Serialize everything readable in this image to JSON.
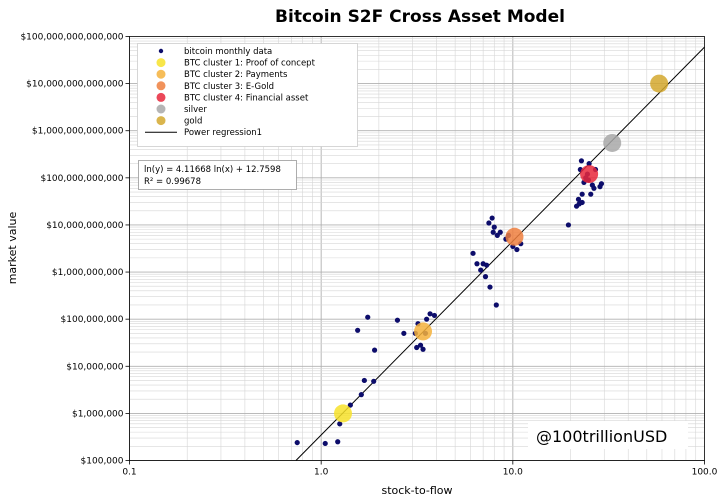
{
  "chart_data": {
    "type": "scatter",
    "title": "Bitcoin S2F Cross Asset Model",
    "xlabel": "stock-to-flow",
    "ylabel": "market value",
    "xscale": "log",
    "yscale": "log",
    "xlim": [
      0.1,
      100
    ],
    "ylim": [
      100000,
      100000000000000
    ],
    "grid": true,
    "x_tick_labels": [
      "0.1",
      "1.0",
      "10.0",
      "100.0"
    ],
    "y_tick_labels": [
      "$100,000",
      "$1,000,000",
      "$10,000,000",
      "$100,000,000",
      "$1,000,000,000",
      "$10,000,000,000",
      "$100,000,000,000",
      "$1,000,000,000,000",
      "$10,000,000,000,000",
      "$100,000,000,000,000"
    ],
    "legend_position": "top-left",
    "legend": [
      {
        "label": "bitcoin monthly data",
        "kind": "dot",
        "color": "#0d0d6b"
      },
      {
        "label": "BTC cluster 1: Proof of concept",
        "kind": "circle",
        "color": "#f7e22a"
      },
      {
        "label": "BTC cluster 2: Payments",
        "kind": "circle",
        "color": "#f5b13c"
      },
      {
        "label": "BTC cluster 3: E-Gold",
        "kind": "circle",
        "color": "#ef7f3e"
      },
      {
        "label": "BTC cluster 4: Financial asset",
        "kind": "circle",
        "color": "#e8283c"
      },
      {
        "label": "silver",
        "kind": "circle",
        "color": "#a8a8a8"
      },
      {
        "label": "gold",
        "kind": "circle",
        "color": "#d4a82e"
      },
      {
        "label": "Power regression1",
        "kind": "line",
        "color": "#000000"
      }
    ],
    "equation": [
      "ln(y) = 4.11668 ln(x) + 12.7598",
      "R² = 0.99678"
    ],
    "watermark": "@100trillionUSD",
    "regression": {
      "a": 4.11668,
      "b": 12.7598
    },
    "series": [
      {
        "name": "bitcoin monthly data",
        "color": "#0d0d6b",
        "points": [
          [
            0.75,
            240000
          ],
          [
            1.05,
            230000
          ],
          [
            1.22,
            250000
          ],
          [
            1.25,
            600000
          ],
          [
            1.42,
            1500000
          ],
          [
            1.62,
            2500000
          ],
          [
            1.68,
            5000000
          ],
          [
            1.88,
            4800000
          ],
          [
            1.9,
            22000000
          ],
          [
            1.55,
            58000000
          ],
          [
            1.75,
            110000000
          ],
          [
            2.5,
            95000000
          ],
          [
            2.7,
            50000000
          ],
          [
            3.1,
            50000000
          ],
          [
            3.2,
            80000000
          ],
          [
            3.4,
            23000000
          ],
          [
            3.5,
            50000000
          ],
          [
            3.55,
            100000000
          ],
          [
            3.7,
            130000000
          ],
          [
            3.9,
            120000000
          ],
          [
            3.3,
            28000000
          ],
          [
            3.15,
            25000000
          ],
          [
            6.2,
            2500000000
          ],
          [
            6.5,
            1500000000
          ],
          [
            6.8,
            1100000000
          ],
          [
            7.0,
            1500000000
          ],
          [
            7.3,
            1400000000
          ],
          [
            7.5,
            11000000000
          ],
          [
            7.8,
            14000000000
          ],
          [
            7.9,
            7000000000
          ],
          [
            7.2,
            800000000
          ],
          [
            7.6,
            480000000
          ],
          [
            8.2,
            200000000
          ],
          [
            8.6,
            7000000000
          ],
          [
            9.2,
            5000000000
          ],
          [
            9.5,
            6000000000
          ],
          [
            10.0,
            3500000000
          ],
          [
            10.5,
            3000000000
          ],
          [
            11.0,
            4000000000
          ],
          [
            8.0,
            9000000000
          ],
          [
            8.3,
            6000000000
          ],
          [
            19.5,
            10000000000
          ],
          [
            21.5,
            25000000000
          ],
          [
            22.0,
            35000000000
          ],
          [
            22.5,
            150000000000
          ],
          [
            23.0,
            45000000000
          ],
          [
            23.5,
            80000000000
          ],
          [
            24.0,
            100000000000
          ],
          [
            24.5,
            120000000000
          ],
          [
            25.0,
            200000000000
          ],
          [
            26.0,
            70000000000
          ],
          [
            27.0,
            150000000000
          ],
          [
            28.5,
            65000000000
          ],
          [
            22.8,
            230000000000
          ],
          [
            23.0,
            30000000000
          ],
          [
            25.5,
            45000000000
          ],
          [
            26.5,
            60000000000
          ],
          [
            29.0,
            75000000000
          ],
          [
            22.2,
            28000000000
          ],
          [
            24.8,
            90000000000
          ]
        ]
      },
      {
        "name": "BTC cluster 1: Proof of concept",
        "color": "#f7e22a",
        "points": [
          [
            1.3,
            1000000
          ]
        ]
      },
      {
        "name": "BTC cluster 2: Payments",
        "color": "#f5b13c",
        "points": [
          [
            3.4,
            55000000
          ]
        ]
      },
      {
        "name": "BTC cluster 3: E-Gold",
        "color": "#ef7f3e",
        "points": [
          [
            10.2,
            5600000000
          ]
        ]
      },
      {
        "name": "BTC cluster 4: Financial asset",
        "color": "#e8283c",
        "points": [
          [
            25.0,
            120000000000
          ]
        ]
      },
      {
        "name": "silver",
        "color": "#a8a8a8",
        "points": [
          [
            33.0,
            550000000000
          ]
        ]
      },
      {
        "name": "gold",
        "color": "#d4a82e",
        "points": [
          [
            58.0,
            10000000000000
          ]
        ]
      }
    ]
  }
}
